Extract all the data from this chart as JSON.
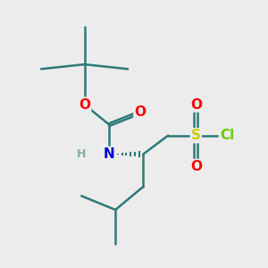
{
  "background_color": "#ececec",
  "bond_color": "#2d7a7a",
  "bond_width": 1.8,
  "atom_colors": {
    "O": "#ff0000",
    "N": "#0000cc",
    "S": "#cccc00",
    "Cl": "#66cc00",
    "C": "#2d7a7a",
    "H": "#7aafaf"
  },
  "font_size_atoms": 11,
  "font_size_H": 9,
  "font_size_Cl": 11
}
